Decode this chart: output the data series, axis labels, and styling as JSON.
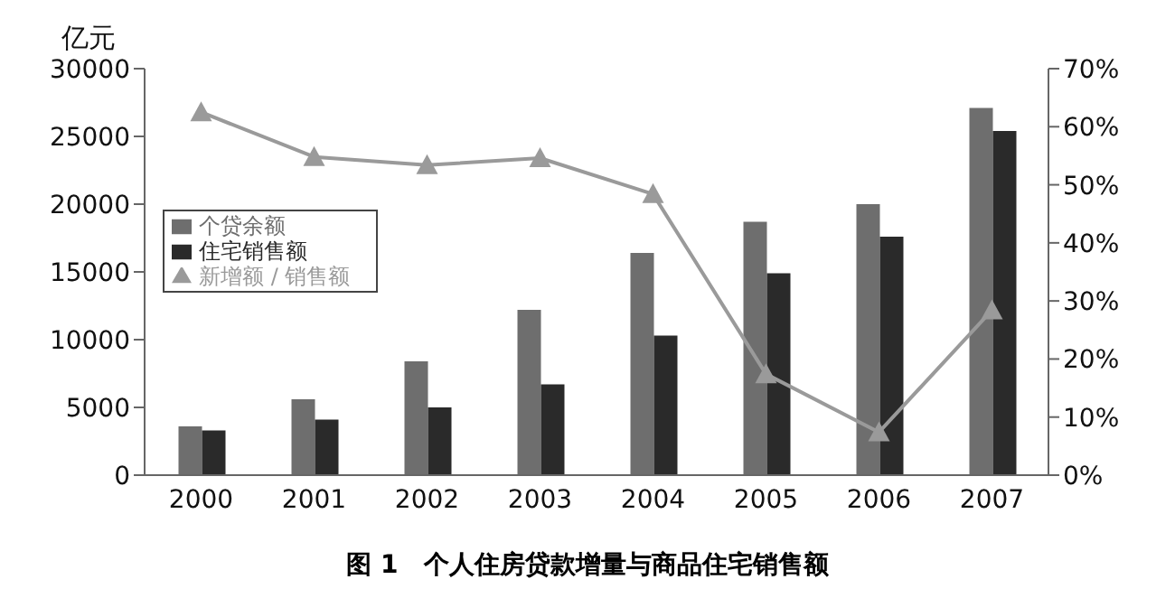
{
  "chart_data": {
    "type": "bar",
    "title": "图 1　个人住房贷款增量与商品住宅销售额",
    "ylabel": "亿元",
    "categories": [
      "2000",
      "2001",
      "2002",
      "2003",
      "2004",
      "2005",
      "2006",
      "2007"
    ],
    "series": [
      {
        "name": "个贷余额",
        "color": "#6e6e6e",
        "values": [
          3600,
          5600,
          8400,
          12200,
          16400,
          18700,
          20000,
          27100
        ]
      },
      {
        "name": "住宅销售额",
        "color": "#2a2a2a",
        "values": [
          3300,
          4100,
          5000,
          6700,
          10300,
          14900,
          17600,
          25400
        ]
      },
      {
        "name": "新增额 / 销售额",
        "type": "line",
        "axis": "y2",
        "color": "#9a9a9a",
        "marker": "triangle",
        "values": [
          62.5,
          54.8,
          53.4,
          54.6,
          48.4,
          17.4,
          7.4,
          28.4
        ]
      }
    ],
    "ylim": [
      0,
      30000
    ],
    "yticks": [
      0,
      5000,
      10000,
      15000,
      20000,
      25000,
      30000
    ],
    "y2lim": [
      0,
      70
    ],
    "y2ticks": [
      {
        "value": 0,
        "label": "0%"
      },
      {
        "value": 10,
        "label": "10%"
      },
      {
        "value": 20,
        "label": "20%"
      },
      {
        "value": 30,
        "label": "30%"
      },
      {
        "value": 40,
        "label": "40%"
      },
      {
        "value": 50,
        "label": "50%"
      },
      {
        "value": 60,
        "label": "60%"
      },
      {
        "value": 70,
        "label": "70%"
      }
    ],
    "grid": false,
    "legend": "left"
  }
}
